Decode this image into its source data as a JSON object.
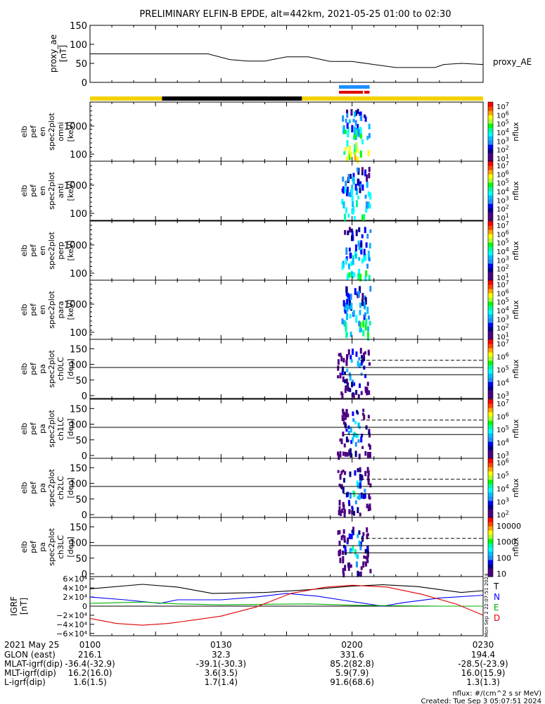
{
  "chart_data": {
    "type": "spectrogram",
    "title": "PRELIMINARY ELFIN-B EPDE, alt=442km, 2021-05-25 01:00 to 02:30",
    "x_tick_labels": [
      "0100",
      "0130",
      "0200",
      "0230"
    ],
    "x_range": [
      "01:00",
      "02:30"
    ],
    "ae_panel": {
      "ylabel": [
        "proxy_ae",
        "[nT]"
      ],
      "series_name": "proxy_AE",
      "yticks": [
        "0",
        "50",
        "100",
        "150"
      ],
      "ylim": [
        0,
        150
      ],
      "x_minutes": [
        0,
        10,
        20,
        27,
        32,
        36,
        40,
        45,
        50,
        55,
        60,
        65,
        70,
        72,
        75,
        79,
        81,
        85,
        90
      ],
      "values": [
        75,
        75,
        75,
        75,
        60,
        56,
        56,
        67,
        67,
        55,
        55,
        47,
        39,
        39,
        39,
        39,
        47,
        50,
        47
      ]
    },
    "status_bar": {
      "yellow_color": "#f5d000",
      "black_range_minutes": [
        16.5,
        48.5
      ],
      "science_bar_blue": [
        57,
        64
      ],
      "science_bar_red": [
        [
          57,
          62.5
        ],
        [
          62.8,
          64
        ]
      ]
    },
    "panels": [
      {
        "ylabel": [
          "elb",
          "pef",
          "en",
          "spec2plot",
          "omni",
          "[keV]"
        ],
        "yticks": [
          "1000",
          "100"
        ],
        "cbar_max_exp": 7,
        "cbar_min_exp": 1
      },
      {
        "ylabel": [
          "elb",
          "pef",
          "en",
          "spec2plot",
          "anti",
          "[keV]"
        ],
        "yticks": [
          "1000",
          "100"
        ],
        "cbar_max_exp": 7,
        "cbar_min_exp": 1
      },
      {
        "ylabel": [
          "elb",
          "pef",
          "en",
          "spec2plot",
          "perp",
          "[keV]"
        ],
        "yticks": [
          "1000",
          "100"
        ],
        "cbar_max_exp": 7,
        "cbar_min_exp": 1
      },
      {
        "ylabel": [
          "elb",
          "pef",
          "en",
          "spec2plot",
          "para",
          "[keV]"
        ],
        "yticks": [
          "1000",
          "100"
        ],
        "cbar_max_exp": 7,
        "cbar_min_exp": 1
      },
      {
        "ylabel": [
          "elb",
          "pef",
          "pa",
          "spec2plot",
          "ch0LC",
          "[deg]"
        ],
        "yticks": [
          "150",
          "100",
          "50",
          "0"
        ],
        "cbar_max_exp": 7,
        "cbar_min_exp": 3
      },
      {
        "ylabel": [
          "elb",
          "pef",
          "pa",
          "spec2plot",
          "ch1LC",
          "[deg]"
        ],
        "yticks": [
          "150",
          "100",
          "50",
          "0"
        ],
        "cbar_max_exp": 7,
        "cbar_min_exp": 3
      },
      {
        "ylabel": [
          "elb",
          "pef",
          "pa",
          "spec2plot",
          "ch2LC",
          "[deg]"
        ],
        "yticks": [
          "150",
          "100",
          "50",
          "0"
        ],
        "cbar_max_exp": 6,
        "cbar_min_exp": 2
      },
      {
        "ylabel": [
          "elb",
          "pef",
          "pa",
          "spec2plot",
          "ch3LC",
          "[deg]"
        ],
        "yticks": [
          "150",
          "100",
          "50",
          "0"
        ],
        "cbar_labels": [
          "10000",
          "1000",
          "100",
          "10"
        ]
      }
    ],
    "colorbar_label": "nflux",
    "igrf_panel": {
      "ylabel": [
        "IGRF",
        "[nT]"
      ],
      "yticks": [
        "6×10⁴",
        "4×10⁴",
        "2×10⁴",
        "0",
        "−2×10⁴",
        "−4×10⁴",
        "−6×10⁴"
      ],
      "ylim": [
        -65000,
        65000
      ],
      "legend": [
        "T",
        "N",
        "E",
        "D"
      ],
      "series": [
        {
          "name": "T",
          "color": "#000000",
          "x_minutes": [
            0,
            12,
            20,
            28,
            40,
            50,
            60,
            67,
            75,
            85,
            90
          ],
          "values": [
            38000,
            48000,
            42000,
            28000,
            30000,
            36000,
            44000,
            47000,
            43000,
            30000,
            34000
          ]
        },
        {
          "name": "N",
          "color": "#0000ff",
          "x_minutes": [
            0,
            8,
            16,
            20,
            30,
            38,
            45,
            52,
            60,
            67,
            72,
            80,
            90
          ],
          "values": [
            20000,
            14000,
            6000,
            14000,
            14000,
            20000,
            28000,
            22000,
            10000,
            0,
            8000,
            18000,
            24000
          ]
        },
        {
          "name": "E",
          "color": "#00b000",
          "x_minutes": [
            0,
            12,
            20,
            30,
            40,
            50,
            60,
            70,
            80,
            90
          ],
          "values": [
            6000,
            9000,
            5000,
            3000,
            4000,
            5000,
            2000,
            1000,
            0,
            0
          ]
        },
        {
          "name": "D",
          "color": "#e00000",
          "x_minutes": [
            0,
            6,
            12,
            18,
            24,
            30,
            38,
            46,
            54,
            60,
            68,
            76,
            84,
            90
          ],
          "values": [
            -27000,
            -38000,
            -42000,
            -38000,
            -30000,
            -22000,
            -2000,
            28000,
            42000,
            46000,
            42000,
            26000,
            4000,
            -20000
          ]
        }
      ]
    },
    "footer_rows": [
      {
        "label": "2021 May 25",
        "values": [
          "0100",
          "0130",
          "0200",
          "0230"
        ]
      },
      {
        "label": "GLON (east)",
        "values": [
          "216.1",
          "32.3",
          "331.6",
          "194.4"
        ]
      },
      {
        "label": "MLAT-igrf(dip)",
        "values": [
          "-36.4(-32.9)",
          "-39.1(-30.3)",
          "85.2(82.8)",
          "-28.5(-23.9)"
        ]
      },
      {
        "label": "MLT-igrf(dip)",
        "values": [
          "16.2(16.0)",
          "3.6(3.5)",
          "5.9(7.9)",
          "16.0(15.9)"
        ]
      },
      {
        "label": "L-igrf(dip)",
        "values": [
          "1.6(1.5)",
          "1.7(1.4)",
          "91.6(68.6)",
          "1.3(1.3)"
        ]
      }
    ],
    "side_timestamp": "Mon Sep 2 22:07:51 2024",
    "units_note": "nflux: #/(cm^2 s sr MeV)",
    "created_note": "Created: Tue Sep  3 05:07:51 2024"
  }
}
